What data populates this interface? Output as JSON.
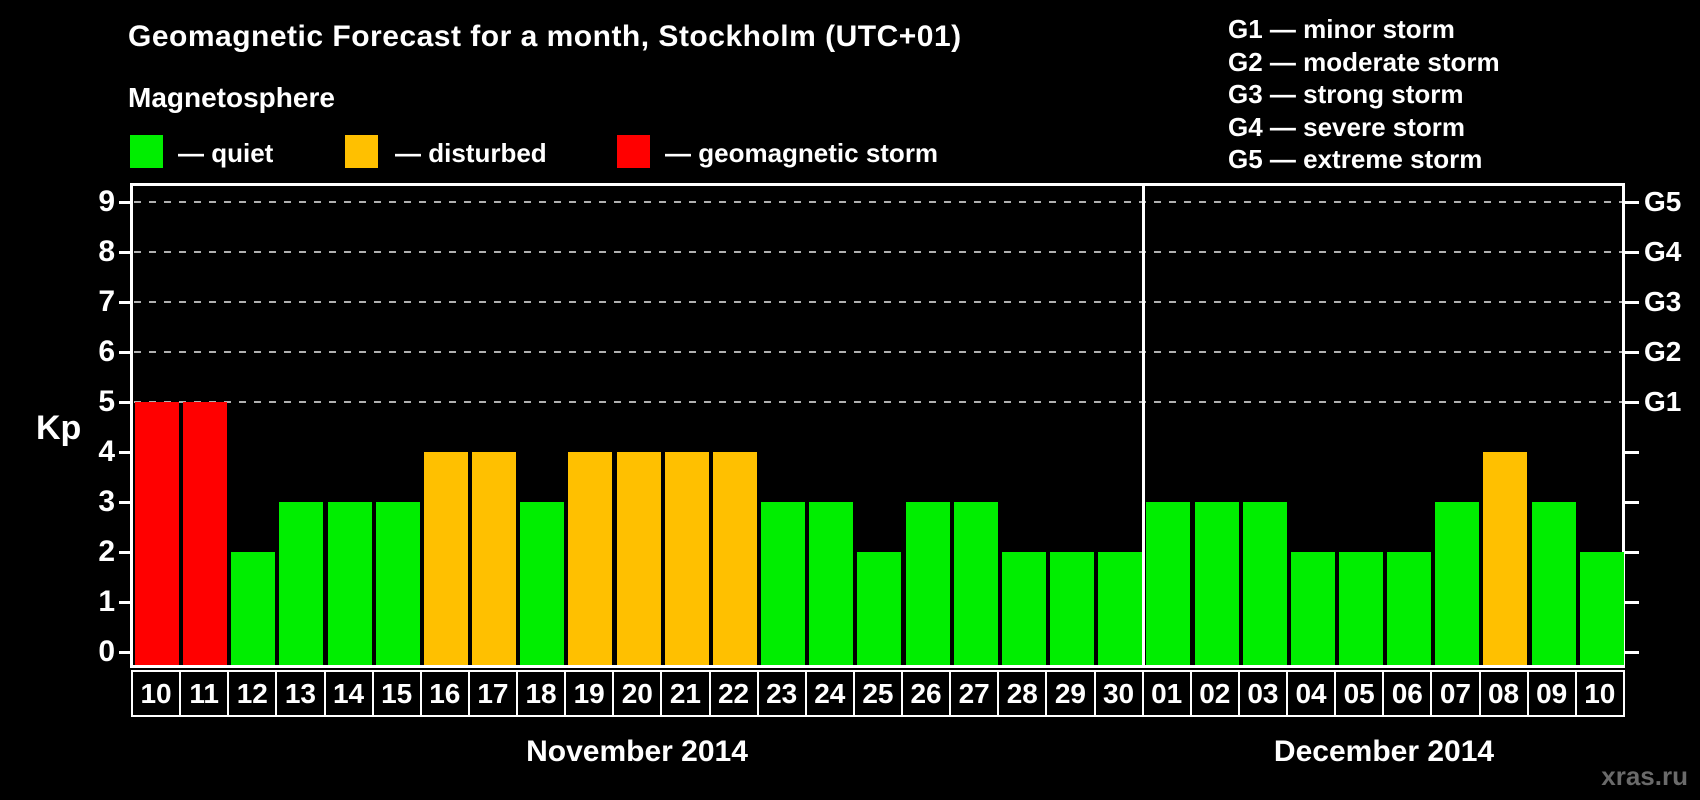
{
  "title": "Geomagnetic Forecast for a month, Stockholm (UTC+01)",
  "legend": {
    "heading": "Magnetosphere",
    "items": [
      {
        "key": "quiet",
        "label": "— quiet",
        "color": "#00ee00"
      },
      {
        "key": "disturbed",
        "label": "— disturbed",
        "color": "#ffc000"
      },
      {
        "key": "storm",
        "label": "— geomagnetic storm",
        "color": "#ff0000"
      }
    ]
  },
  "g_scale_legend": [
    "G1 — minor storm",
    "G2 — moderate storm",
    "G3 — strong storm",
    "G4 — severe storm",
    "G5 — extreme storm"
  ],
  "axes": {
    "y_left_label": "Kp",
    "y_ticks": [
      "0",
      "1",
      "2",
      "3",
      "4",
      "5",
      "6",
      "7",
      "8",
      "9"
    ],
    "y_right_labels": [
      "G1",
      "G2",
      "G3",
      "G4",
      "G5"
    ]
  },
  "watermark": "xras.ru",
  "chart_data": {
    "type": "bar",
    "title": "Geomagnetic Forecast for a month, Stockholm (UTC+01)",
    "ylabel": "Kp",
    "ylim": [
      0,
      9
    ],
    "gridlines_at_kp": [
      5,
      6,
      7,
      8,
      9
    ],
    "g_levels": {
      "G1": 5,
      "G2": 6,
      "G3": 7,
      "G4": 8,
      "G5": 9
    },
    "color_rule": {
      "quiet": "Kp 0-3",
      "disturbed": "Kp 4",
      "storm": "Kp 5-9"
    },
    "legend_position": "top",
    "series": [
      {
        "month": "November 2014",
        "days": [
          "10",
          "11",
          "12",
          "13",
          "14",
          "15",
          "16",
          "17",
          "18",
          "19",
          "20",
          "21",
          "22",
          "23",
          "24",
          "25",
          "26",
          "27",
          "28",
          "29",
          "30"
        ],
        "kp": [
          5,
          5,
          2,
          3,
          3,
          3,
          4,
          4,
          3,
          4,
          4,
          4,
          4,
          3,
          3,
          2,
          3,
          3,
          2,
          2,
          2
        ]
      },
      {
        "month": "December 2014",
        "days": [
          "01",
          "02",
          "03",
          "04",
          "05",
          "06",
          "07",
          "08",
          "09",
          "10"
        ],
        "kp": [
          3,
          3,
          3,
          2,
          2,
          2,
          3,
          4,
          3,
          2
        ]
      }
    ]
  }
}
